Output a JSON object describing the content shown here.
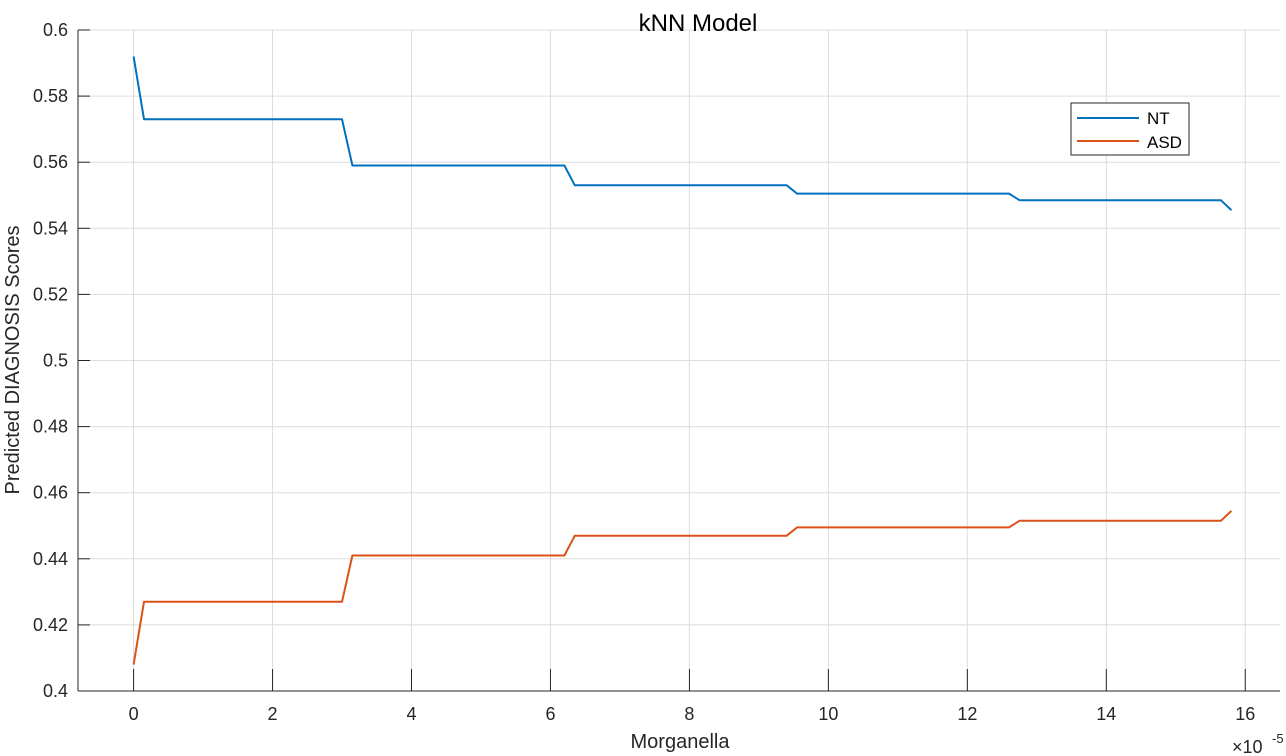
{
  "chart_data": {
    "type": "line",
    "title": "kNN Model",
    "xlabel": "Morganella",
    "ylabel": "Predicted DIAGNOSIS Scores",
    "x_exponent_label": "×10",
    "x_exponent_power": "-5",
    "xlim": [
      -0.8,
      16.5
    ],
    "ylim": [
      0.4,
      0.6
    ],
    "x_ticks": [
      0,
      2,
      4,
      6,
      8,
      10,
      12,
      14,
      16
    ],
    "x_tick_labels": [
      "0",
      "2",
      "4",
      "6",
      "8",
      "10",
      "12",
      "14",
      "16"
    ],
    "y_ticks": [
      0.4,
      0.42,
      0.44,
      0.46,
      0.48,
      0.5,
      0.52,
      0.54,
      0.56,
      0.58,
      0.6
    ],
    "y_tick_labels": [
      "0.4",
      "0.42",
      "0.44",
      "0.46",
      "0.48",
      "0.5",
      "0.52",
      "0.54",
      "0.56",
      "0.58",
      "0.6"
    ],
    "grid": true,
    "legend_position": "top-right",
    "series": [
      {
        "name": "NT",
        "color": "#0072BD",
        "x": [
          0,
          0.15,
          3.0,
          3.15,
          6.2,
          6.35,
          9.4,
          9.55,
          12.6,
          12.75,
          15.65,
          15.8
        ],
        "y": [
          0.592,
          0.573,
          0.573,
          0.559,
          0.559,
          0.553,
          0.553,
          0.5505,
          0.5505,
          0.5485,
          0.5485,
          0.5455
        ]
      },
      {
        "name": "ASD",
        "color": "#D95319",
        "x": [
          0,
          0.15,
          3.0,
          3.15,
          6.2,
          6.35,
          9.4,
          9.55,
          12.6,
          12.75,
          15.65,
          15.8
        ],
        "y": [
          0.408,
          0.427,
          0.427,
          0.441,
          0.441,
          0.447,
          0.447,
          0.4495,
          0.4495,
          0.4515,
          0.4515,
          0.4545
        ]
      }
    ]
  }
}
